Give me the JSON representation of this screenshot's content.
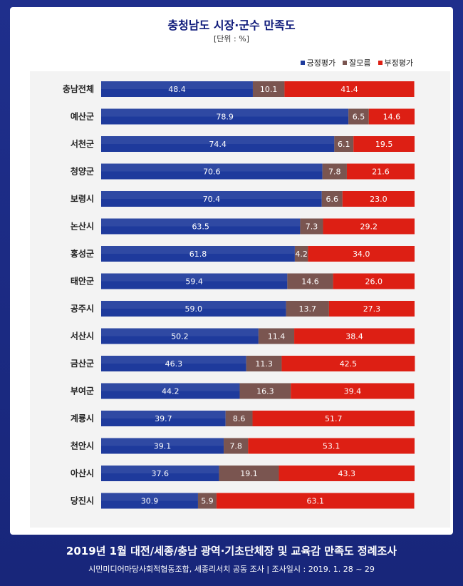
{
  "chart_data": {
    "type": "bar",
    "stacked": true,
    "orientation": "horizontal",
    "title": "충청남도 시장·군수 만족도",
    "unit_label": "[단위 : %]",
    "categories": [
      "충남전체",
      "예산군",
      "서천군",
      "청양군",
      "보령시",
      "논산시",
      "홍성군",
      "태안군",
      "공주시",
      "서산시",
      "금산군",
      "부여군",
      "계룡시",
      "천안시",
      "아산시",
      "당진시"
    ],
    "series": [
      {
        "name": "긍정평가",
        "color": "#1e3a9c",
        "values": [
          48.4,
          78.9,
          74.4,
          70.6,
          70.4,
          63.5,
          61.8,
          59.4,
          59.0,
          50.2,
          46.3,
          44.2,
          39.7,
          39.1,
          37.6,
          30.9
        ]
      },
      {
        "name": "잘모름",
        "color": "#7a5550",
        "values": [
          10.1,
          6.5,
          6.1,
          7.8,
          6.6,
          7.3,
          4.2,
          14.6,
          13.7,
          11.4,
          11.3,
          16.3,
          8.6,
          7.8,
          19.1,
          5.9
        ]
      },
      {
        "name": "부정평가",
        "color": "#dd1f14",
        "values": [
          41.4,
          14.6,
          19.5,
          21.6,
          23.0,
          29.2,
          34.0,
          26.0,
          27.3,
          38.4,
          42.5,
          39.4,
          51.7,
          53.1,
          43.3,
          63.1
        ]
      }
    ],
    "value_labels": [
      [
        "48.4",
        "10.1",
        "41.4"
      ],
      [
        "78.9",
        "6.5",
        "14.6"
      ],
      [
        "74.4",
        "6.1",
        "19.5"
      ],
      [
        "70.6",
        "7.8",
        "21.6"
      ],
      [
        "70.4",
        "6.6",
        "23.0"
      ],
      [
        "63.5",
        "7.3",
        "29.2"
      ],
      [
        "61.8",
        "4.2",
        "34.0"
      ],
      [
        "59.4",
        "14.6",
        "26.0"
      ],
      [
        "59.0",
        "13.7",
        "27.3"
      ],
      [
        "50.2",
        "11.4",
        "38.4"
      ],
      [
        "46.3",
        "11.3",
        "42.5"
      ],
      [
        "44.2",
        "16.3",
        "39.4"
      ],
      [
        "39.7",
        "8.6",
        "51.7"
      ],
      [
        "39.1",
        "7.8",
        "53.1"
      ],
      [
        "37.6",
        "19.1",
        "43.3"
      ],
      [
        "30.9",
        "5.9",
        "63.1"
      ]
    ],
    "xlim": [
      0,
      100
    ],
    "legend_position": "top-right"
  },
  "footer": {
    "title": "2019년 1월 대전/세종/충남 광역·기초단체장 및 교육감 만족도 정례조사",
    "subtitle": "시민미디어마당사회적협동조합, 세종리서치 공동 조사  |  조사일시 : 2019. 1. 28 ~ 29"
  }
}
